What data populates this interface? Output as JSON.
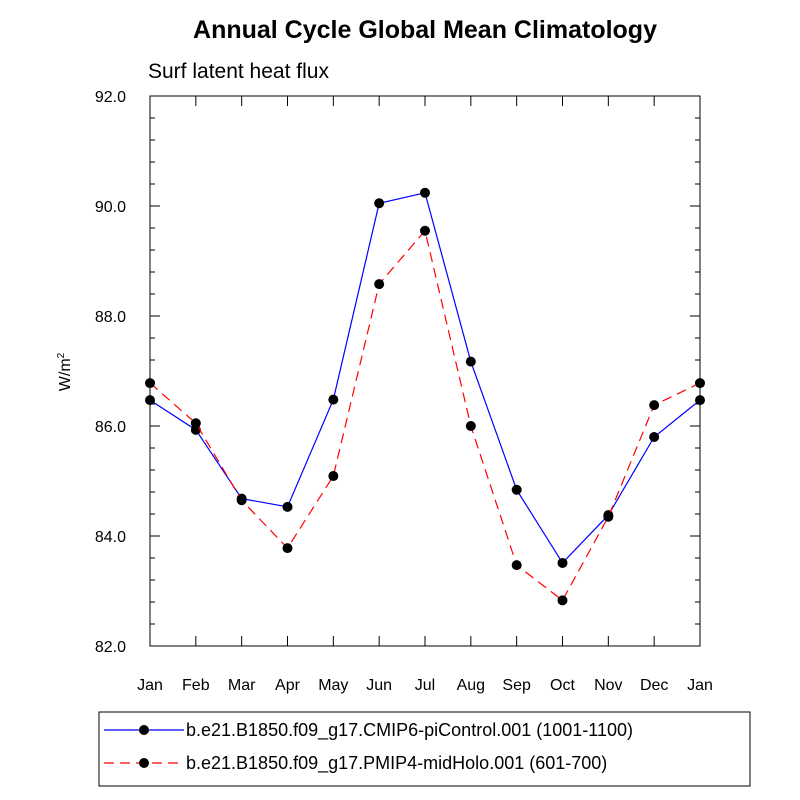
{
  "chart_data": {
    "type": "line",
    "title": "Annual Cycle Global Mean Climatology",
    "subtitle": "Surf latent heat flux",
    "ylabel": "W/m",
    "ylabel_sup": "2",
    "xlabel": "",
    "categories": [
      "Jan",
      "Feb",
      "Mar",
      "Apr",
      "May",
      "Jun",
      "Jul",
      "Aug",
      "Sep",
      "Oct",
      "Nov",
      "Dec",
      "Jan"
    ],
    "ylim": [
      82.0,
      92.0
    ],
    "yticks": [
      82.0,
      84.0,
      86.0,
      88.0,
      90.0,
      92.0
    ],
    "ytick_labels": [
      "82.0",
      "84.0",
      "86.0",
      "88.0",
      "90.0",
      "92.0"
    ],
    "grid": false,
    "legend_position": "bottom",
    "series": [
      {
        "name": "b.e21.B1850.f09_g17.CMIP6-piControl.001 (1001-1100)",
        "color": "#0000ff",
        "dash": "solid",
        "values": [
          86.47,
          85.93,
          84.68,
          84.53,
          86.48,
          90.05,
          90.24,
          87.17,
          84.84,
          83.51,
          84.38,
          85.8,
          86.47
        ]
      },
      {
        "name": "b.e21.B1850.f09_g17.PMIP4-midHolo.001 (601-700)",
        "color": "#ff0000",
        "dash": "dashed",
        "values": [
          86.78,
          86.05,
          84.65,
          83.78,
          85.09,
          88.58,
          89.55,
          86.0,
          83.47,
          82.83,
          84.35,
          86.38,
          86.78
        ]
      }
    ]
  }
}
